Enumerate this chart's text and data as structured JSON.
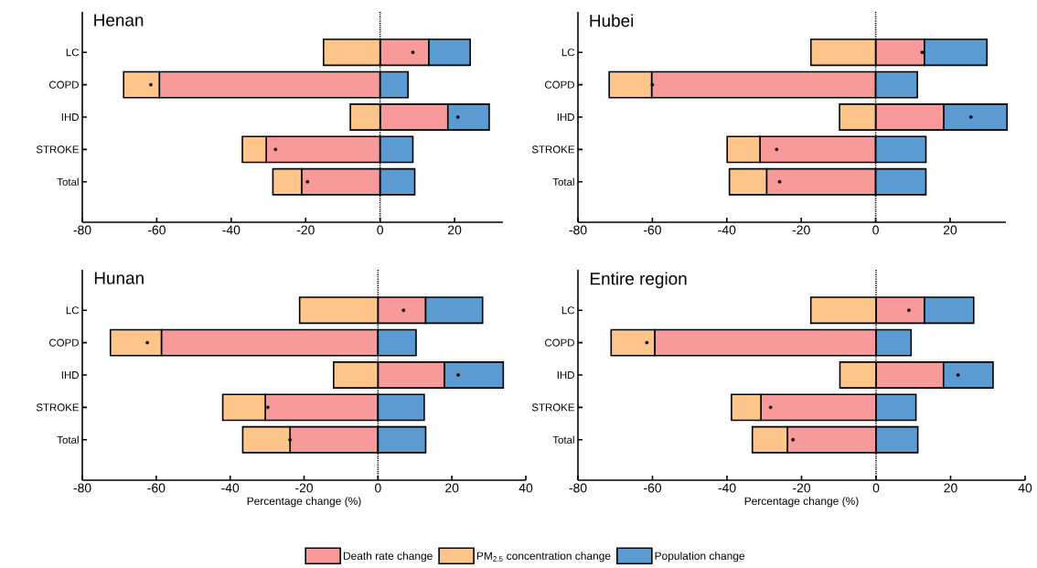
{
  "chart_data": [
    {
      "type": "bar",
      "orientation": "horizontal",
      "stacked": true,
      "title": "Henan",
      "categories": [
        "LC",
        "COPD",
        "IHD",
        "STROKE",
        "Total"
      ],
      "xlim": [
        -80,
        33
      ],
      "xticks": [
        -80,
        -60,
        -40,
        -20,
        0,
        20
      ],
      "marker": "circle",
      "ref_lines": [
        {
          "axis": "x",
          "value": 0,
          "line_style": "dotted"
        }
      ],
      "series": [
        {
          "color": "#f8999a",
          "values": [
            13.1,
            -59.3,
            18.2,
            -30.6,
            -21.1
          ]
        },
        {
          "color": "#fdc58a",
          "values": [
            -15.2,
            -9.6,
            -8.0,
            -6.4,
            -7.7
          ]
        },
        {
          "color": "#5b9bd1",
          "values": [
            11.1,
            7.5,
            11.1,
            8.8,
            9.3
          ]
        },
        {
          "type": "scatter",
          "color": "#000000",
          "values": [
            8.8,
            -61.6,
            20.9,
            -28.1,
            -19.5
          ]
        }
      ]
    },
    {
      "type": "bar",
      "orientation": "horizontal",
      "stacked": true,
      "title": "Hubei",
      "categories": [
        "LC",
        "COPD",
        "IHD",
        "STROKE",
        "Total"
      ],
      "xlim": [
        -80,
        35
      ],
      "xticks": [
        -80,
        -60,
        -40,
        -20,
        0,
        20
      ],
      "marker": "circle",
      "ref_lines": [
        {
          "axis": "x",
          "value": 0,
          "line_style": "dotted"
        }
      ],
      "series": [
        {
          "color": "#f8999a",
          "values": [
            13.1,
            -60.2,
            18.3,
            -31.1,
            -29.3
          ]
        },
        {
          "color": "#fdc58a",
          "values": [
            -17.4,
            -11.4,
            -9.7,
            -8.8,
            -10.0
          ]
        },
        {
          "color": "#5b9bd1",
          "values": [
            16.8,
            11.2,
            17.0,
            13.5,
            13.5
          ]
        },
        {
          "type": "scatter",
          "color": "#000000",
          "values": [
            12.5,
            -60.0,
            25.6,
            -26.6,
            -25.8
          ]
        }
      ]
    },
    {
      "type": "bar",
      "orientation": "horizontal",
      "stacked": true,
      "title": "Hunan",
      "xlabel": "Percentage change (%)",
      "categories": [
        "LC",
        "COPD",
        "IHD",
        "STROKE",
        "Total"
      ],
      "xlim": [
        -80,
        40
      ],
      "xticks": [
        -80,
        -60,
        -40,
        -20,
        0,
        20,
        40
      ],
      "marker": "circle",
      "legend": "bottom",
      "ref_lines": [
        {
          "axis": "x",
          "value": 0,
          "line_style": "dotted"
        }
      ],
      "series": [
        {
          "name": "Death rate change",
          "color": "#f8999a",
          "values": [
            12.9,
            -58.6,
            18.0,
            -30.5,
            -23.8
          ]
        },
        {
          "name": "PM$_{2.5}$ concentration change",
          "color": "#fdc58a",
          "values": [
            -21.2,
            -13.8,
            -12.0,
            -11.5,
            -12.8
          ]
        },
        {
          "name": "Population change",
          "color": "#5b9bd1",
          "values": [
            15.4,
            10.3,
            15.9,
            12.5,
            12.9
          ]
        },
        {
          "type": "scatter",
          "color": "#000000",
          "values": [
            6.9,
            -62.4,
            21.7,
            -29.8,
            -23.8
          ]
        }
      ]
    },
    {
      "type": "bar",
      "orientation": "horizontal",
      "stacked": true,
      "title": "Entire region",
      "xlabel": "Percentage change (%)",
      "categories": [
        "LC",
        "COPD",
        "IHD",
        "STROKE",
        "Total"
      ],
      "xlim": [
        -80,
        40
      ],
      "xticks": [
        -80,
        -60,
        -40,
        -20,
        0,
        20,
        40
      ],
      "marker": "circle",
      "ref_lines": [
        {
          "axis": "x",
          "value": 0,
          "line_style": "dotted"
        }
      ],
      "series": [
        {
          "color": "#f8999a",
          "values": [
            13.0,
            -59.4,
            18.1,
            -30.9,
            -23.8
          ]
        },
        {
          "color": "#fdc58a",
          "values": [
            -17.5,
            -11.7,
            -9.7,
            -7.9,
            -9.4
          ]
        },
        {
          "color": "#5b9bd1",
          "values": [
            13.2,
            9.4,
            13.3,
            10.7,
            11.2
          ]
        },
        {
          "type": "scatter",
          "color": "#000000",
          "values": [
            8.8,
            -61.5,
            22.0,
            -28.3,
            -22.3
          ]
        }
      ]
    }
  ]
}
